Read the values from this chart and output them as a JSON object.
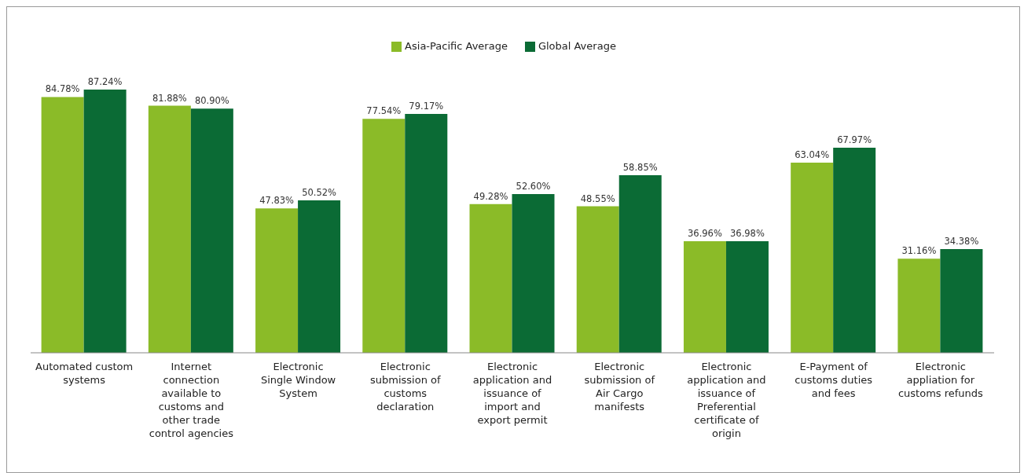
{
  "chart_data": {
    "type": "bar",
    "categories": [
      "Automated custom systems",
      "Internet connection available to customs and other trade control agencies",
      "Electronic Single Window System",
      "Electronic submission of customs declaration",
      "Electronic application and issuance of import and export permit",
      "Electronic submission of Air Cargo manifests",
      "Electronic application and issuance of Preferential certificate of origin",
      "E-Payment of customs duties and fees",
      "Electronic appliation for customs refunds"
    ],
    "series": [
      {
        "name": "Asia-Pacific Average",
        "color": "#8bbb28",
        "values": [
          84.78,
          81.88,
          47.83,
          77.54,
          49.28,
          48.55,
          36.96,
          63.04,
          31.16
        ],
        "value_labels": [
          "84.78%",
          "81.88%",
          "47.83%",
          "77.54%",
          "49.28%",
          "48.55%",
          "36.96%",
          "63.04%",
          "31.16%"
        ]
      },
      {
        "name": "Global Average",
        "color": "#0b6b35",
        "values": [
          87.24,
          80.9,
          50.52,
          79.17,
          52.6,
          58.85,
          36.98,
          67.97,
          34.38
        ],
        "value_labels": [
          "87.24%",
          "80.90%",
          "50.52%",
          "79.17%",
          "52.60%",
          "58.85%",
          "36.98%",
          "67.97%",
          "34.38%"
        ]
      }
    ],
    "legend": "top",
    "grid": false
  }
}
